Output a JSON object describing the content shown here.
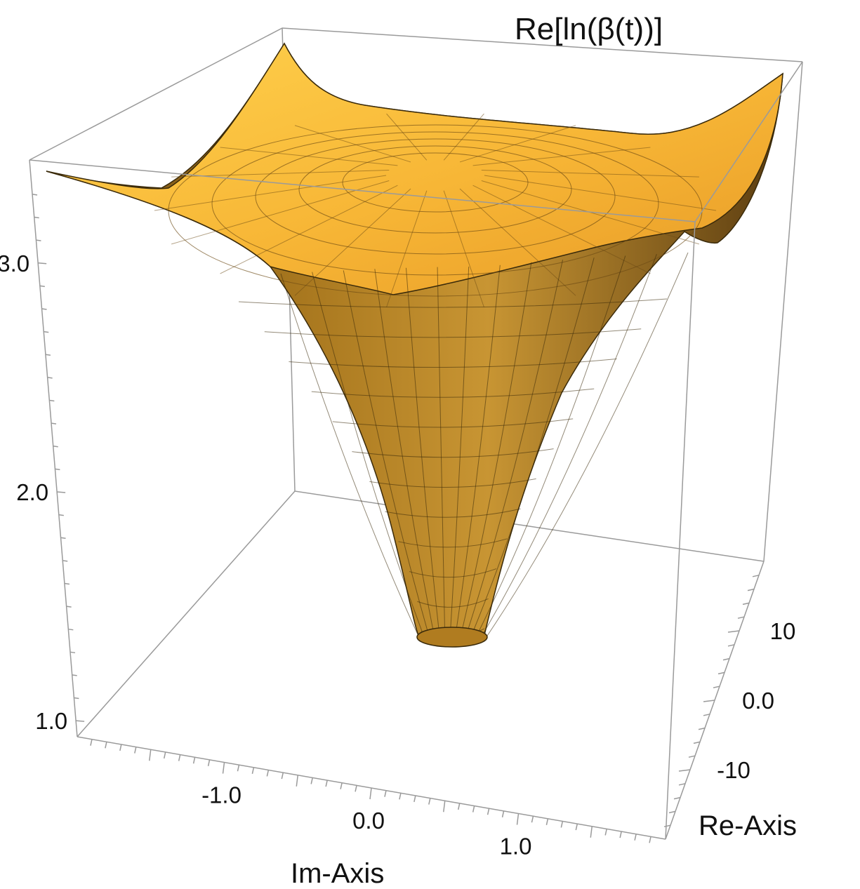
{
  "chart_data": {
    "type": "surface3d",
    "title": "Re[ln(β(t))]",
    "xlabel": "Im-Axis",
    "ylabel": "Re-Axis",
    "zlabel": "",
    "x_ticks": [
      "-1.0",
      "0.0",
      "1.0"
    ],
    "y_ticks": [
      "-10",
      "0.0",
      "10"
    ],
    "z_ticks": [
      "1.0",
      "2.0",
      "3.0"
    ],
    "xlim": [
      -2.0,
      2.0
    ],
    "ylim": [
      -20,
      20
    ],
    "zlim": [
      0.93,
      3.45
    ],
    "surface": {
      "shape": "funnel",
      "z_min_at_center": 1.35,
      "z_at_corners": 3.4,
      "grid": "polar",
      "color": "#f4b437"
    },
    "box": true,
    "grid": false
  }
}
